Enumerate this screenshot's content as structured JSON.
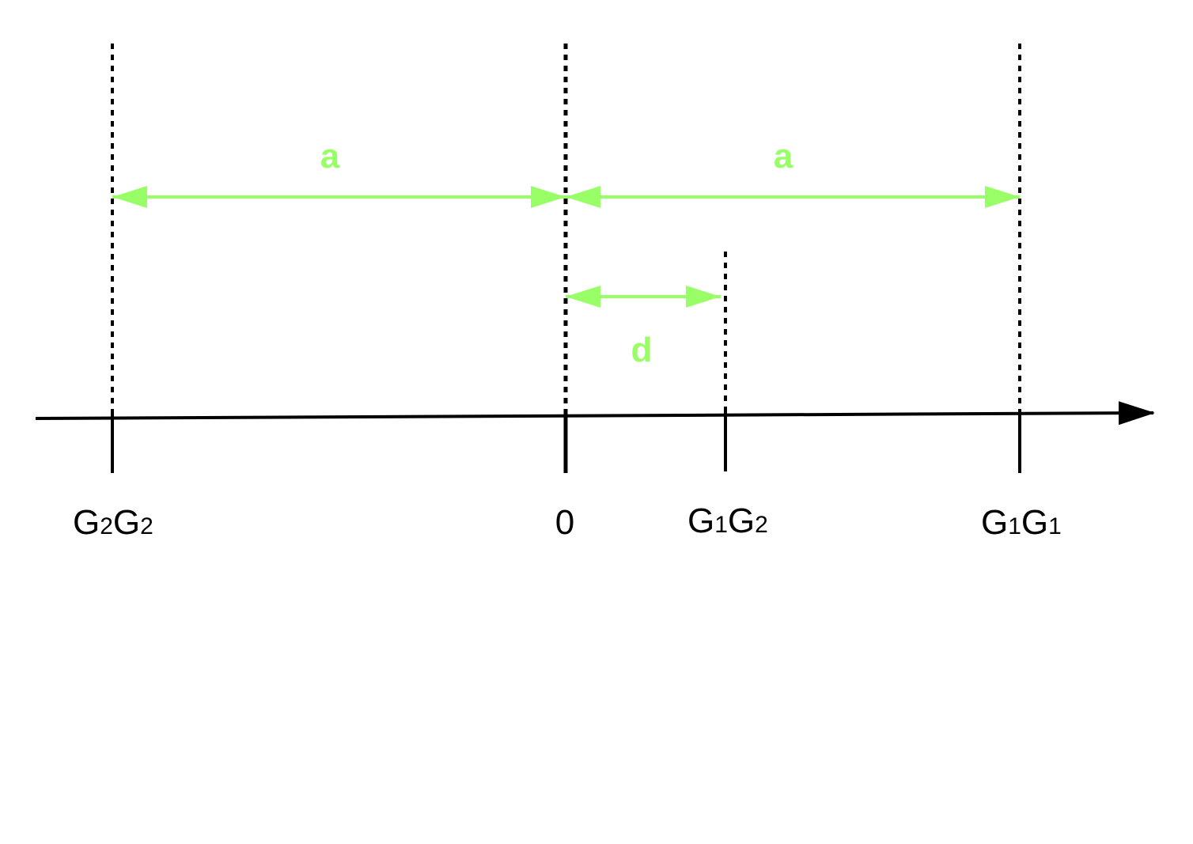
{
  "diagram": {
    "axis_color": "#000000",
    "accent_color": "#99FF66",
    "ticks": [
      {
        "id": "g2g2",
        "main1": "G",
        "sub1": "2",
        "main2": "G",
        "sub2": "2"
      },
      {
        "id": "zero",
        "main1": "0"
      },
      {
        "id": "g1g2",
        "main1": "G",
        "sub1": "1",
        "main2": "G",
        "sub2": "2"
      },
      {
        "id": "g1g1",
        "main1": "G",
        "sub1": "1",
        "main2": "G",
        "sub2": "1"
      }
    ],
    "dimensions": {
      "left_a": "a",
      "right_a": "a",
      "d": "d"
    }
  }
}
